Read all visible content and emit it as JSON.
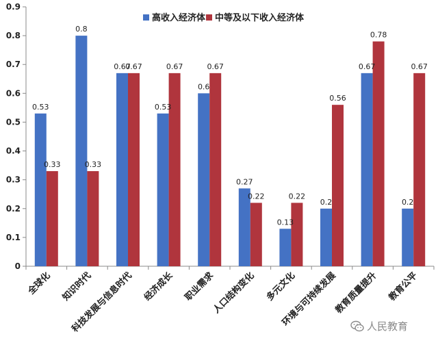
{
  "chart_data": {
    "type": "bar",
    "categories": [
      "全球化",
      "知识时代",
      "科技发展与信息时代",
      "经济成长",
      "职业需求",
      "人口结构变化",
      "多元文化",
      "环境与可持续发展",
      "教育质量提升",
      "教育公平"
    ],
    "series": [
      {
        "name": "高收入经济体",
        "color": "#4472C4",
        "values": [
          0.53,
          0.8,
          0.67,
          0.53,
          0.6,
          0.27,
          0.13,
          0.2,
          0.67,
          0.2
        ]
      },
      {
        "name": "中等及以下收入经济体",
        "color": "#B0353D",
        "values": [
          0.33,
          0.33,
          0.67,
          0.67,
          0.67,
          0.22,
          0.22,
          0.56,
          0.78,
          0.67
        ]
      }
    ],
    "data_labels": [
      [
        "0.53",
        "0.8",
        "0.67",
        "0.53",
        "0.6",
        "0.27",
        "0.13",
        "0.2",
        "0.67",
        "0.2"
      ],
      [
        "0.33",
        "0.33",
        "0.67",
        "0.67",
        "0.67",
        "0.22",
        "0.22",
        "0.56",
        "0.78",
        "0.67"
      ]
    ],
    "ylim": [
      0,
      0.9
    ],
    "yticks": [
      "0",
      "0.1",
      "0.2",
      "0.3",
      "0.4",
      "0.5",
      "0.6",
      "0.7",
      "0.8",
      "0.9"
    ],
    "grid": false,
    "legend_position": "top-right",
    "title": "",
    "xlabel": "",
    "ylabel": ""
  },
  "watermark": {
    "text": "人民教育",
    "icon": "wechat-icon"
  }
}
